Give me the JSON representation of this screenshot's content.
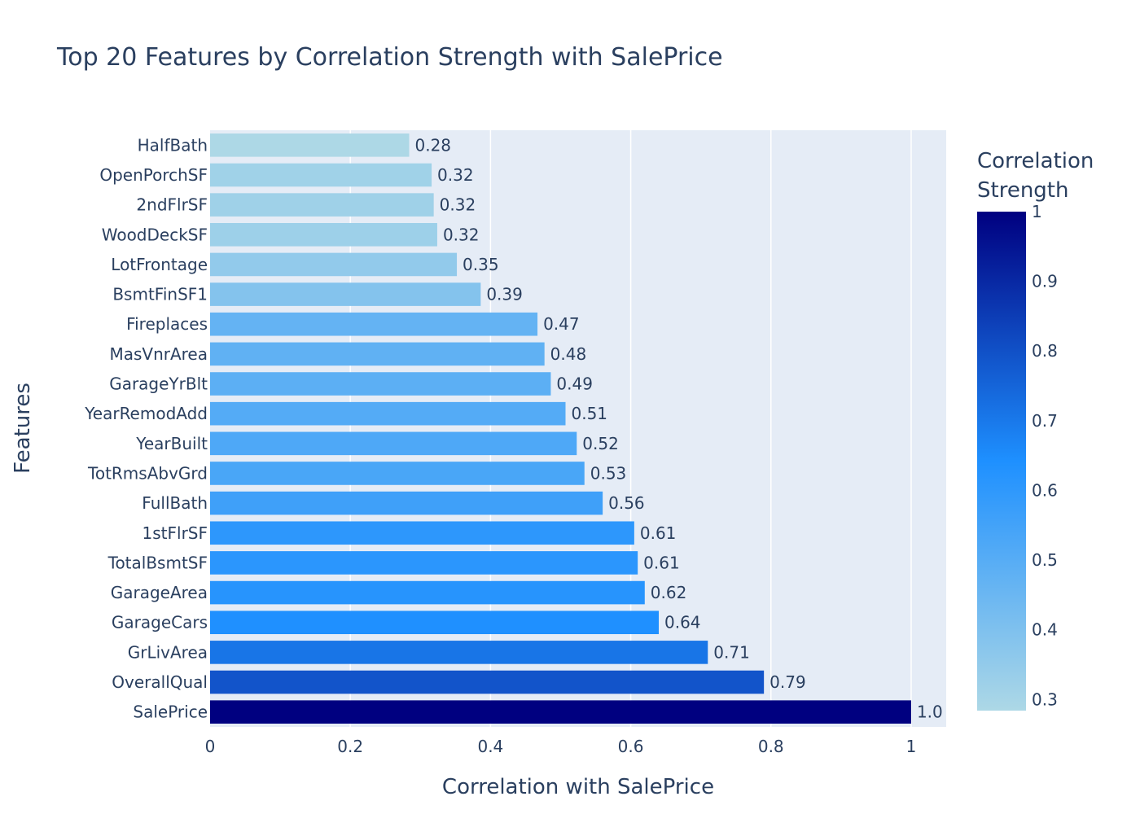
{
  "chart_data": {
    "type": "bar",
    "orientation": "horizontal",
    "title": "Top 20 Features by Correlation Strength with SalePrice",
    "xlabel": "Correlation with SalePrice",
    "ylabel": "Features",
    "xlim": [
      0,
      1.05
    ],
    "x_ticks": [
      0,
      0.2,
      0.4,
      0.6,
      0.8,
      1
    ],
    "x_tick_labels": [
      "0",
      "0.2",
      "0.4",
      "0.6",
      "0.8",
      "1"
    ],
    "grid": true,
    "categories": [
      "SalePrice",
      "OverallQual",
      "GrLivArea",
      "GarageCars",
      "GarageArea",
      "TotalBsmtSF",
      "1stFlrSF",
      "FullBath",
      "TotRmsAbvGrd",
      "YearBuilt",
      "YearRemodAdd",
      "GarageYrBlt",
      "MasVnrArea",
      "Fireplaces",
      "BsmtFinSF1",
      "LotFrontage",
      "WoodDeckSF",
      "2ndFlrSF",
      "OpenPorchSF",
      "HalfBath"
    ],
    "values": [
      1.0,
      0.79,
      0.71,
      0.64,
      0.62,
      0.61,
      0.605,
      0.56,
      0.534,
      0.523,
      0.507,
      0.486,
      0.477,
      0.467,
      0.386,
      0.352,
      0.324,
      0.319,
      0.316,
      0.284
    ],
    "data_labels": [
      "1.0",
      "0.79",
      "0.71",
      "0.64",
      "0.62",
      "0.61",
      "0.61",
      "0.56",
      "0.53",
      "0.52",
      "0.51",
      "0.49",
      "0.48",
      "0.47",
      "0.39",
      "0.35",
      "0.32",
      "0.32",
      "0.32",
      "0.28"
    ],
    "colorbar": {
      "title_lines": [
        "Correlation",
        "Strength"
      ],
      "range": [
        0.284,
        1.0
      ],
      "ticks": [
        0.3,
        0.4,
        0.5,
        0.6,
        0.7,
        0.8,
        0.9,
        1
      ],
      "tick_labels": [
        "0.3",
        "0.4",
        "0.5",
        "0.6",
        "0.7",
        "0.8",
        "0.9",
        "1"
      ],
      "colorscale": [
        "#add8e6",
        "#1e90ff",
        "#000080"
      ]
    },
    "colors": {
      "plot_bg": "#e5ecf6",
      "grid": "#ffffff",
      "text": "#2a3f5f"
    }
  }
}
